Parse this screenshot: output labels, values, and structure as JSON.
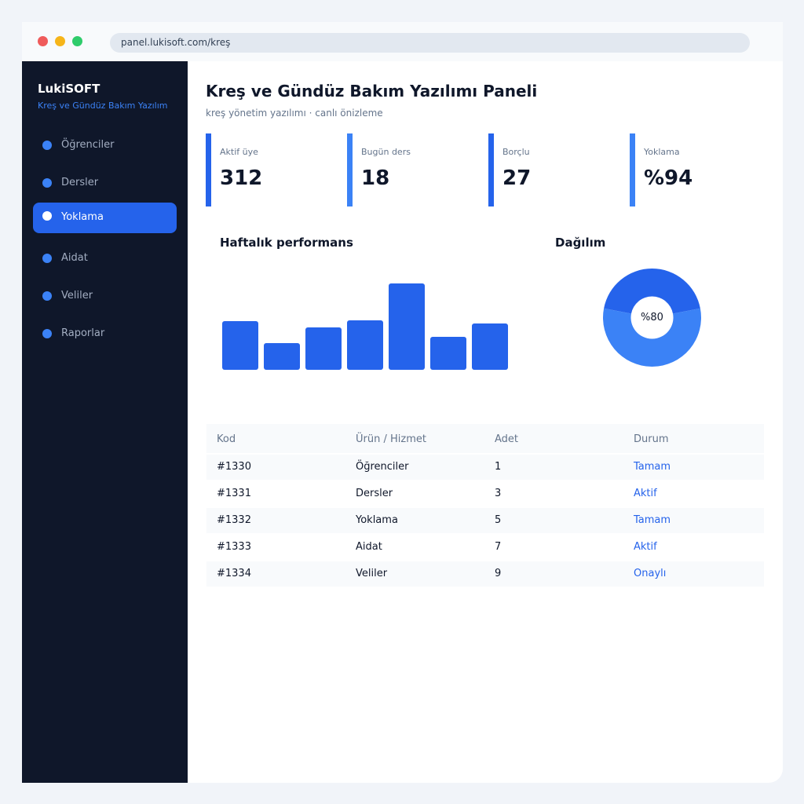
{
  "browser": {
    "url": "panel.lukisoft.com/kreş"
  },
  "sidebar": {
    "brand": "LukiSOFT",
    "brand_sub": "Kreş ve Gündüz Bakım Yazılım",
    "items": [
      {
        "label": "Öğrenciler"
      },
      {
        "label": "Dersler"
      },
      {
        "label": "Yoklama",
        "active": true
      },
      {
        "label": "Aidat"
      },
      {
        "label": "Veliler"
      },
      {
        "label": "Raporlar"
      }
    ]
  },
  "header": {
    "title": "Kreş ve Gündüz Bakım Yazılımı Paneli",
    "subtitle": "kreş yönetim yazılımı · canlı önizleme"
  },
  "stats": [
    {
      "label": "Aktif üye",
      "value": "312"
    },
    {
      "label": "Bugün ders",
      "value": "18"
    },
    {
      "label": "Borçlu",
      "value": "27"
    },
    {
      "label": "Yoklama",
      "value": "%94"
    }
  ],
  "performance": {
    "title": "Haftalık performans"
  },
  "distribution": {
    "title": "Dağılım",
    "label": "%80"
  },
  "chart_data": [
    {
      "type": "bar",
      "title": "Haftalık performans",
      "values": [
        62,
        34,
        54,
        63,
        110,
        42,
        59
      ],
      "ylim": [
        0,
        110
      ],
      "grid": false,
      "color": "#2563eb"
    },
    {
      "type": "pie",
      "title": "Dağılım",
      "values": [
        44,
        56
      ],
      "center_label": "%80",
      "colors": [
        "#2563eb",
        "#3b82f6"
      ]
    }
  ],
  "table": {
    "headers": [
      "Kod",
      "Ürün / Hizmet",
      "Adet",
      "Durum"
    ],
    "rows": [
      {
        "kod": "#1330",
        "urun": "Öğrenciler",
        "adet": "1",
        "durum": "Tamam"
      },
      {
        "kod": "#1331",
        "urun": "Dersler",
        "adet": "3",
        "durum": "Aktif"
      },
      {
        "kod": "#1332",
        "urun": "Yoklama",
        "adet": "5",
        "durum": "Tamam"
      },
      {
        "kod": "#1333",
        "urun": "Aidat",
        "adet": "7",
        "durum": "Aktif"
      },
      {
        "kod": "#1334",
        "urun": "Veliler",
        "adet": "9",
        "durum": "Onaylı"
      }
    ]
  },
  "colors": {
    "accent": "#2563eb",
    "accent_light": "#3b82f6",
    "sidebar_bg": "#0f172a"
  }
}
